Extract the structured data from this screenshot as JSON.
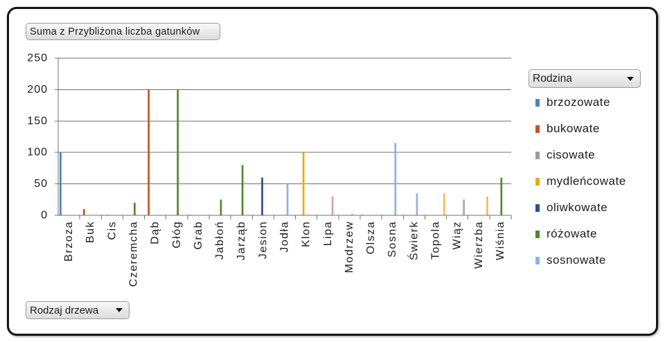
{
  "field_buttons": {
    "values": "Suma z Przybliżona liczba gatunków",
    "legend": "Rodzina",
    "axis": "Rodzaj drzewa"
  },
  "icons": {
    "dropdown": "chevron-down-icon"
  },
  "chart_data": {
    "type": "bar",
    "categories": [
      "Brzoza",
      "Buk",
      "Cis",
      "Czeremcha",
      "Dąb",
      "Głóg",
      "Grab",
      "Jabłoń",
      "Jarząb",
      "Jesion",
      "Jodła",
      "Klon",
      "Lipa",
      "Modrzew",
      "Olsza",
      "Sosna",
      "Świerk",
      "Topola",
      "Wiąz",
      "Wierzba",
      "Wiśnia"
    ],
    "ylim": [
      0,
      250
    ],
    "yticks": [
      0,
      50,
      100,
      150,
      200,
      250
    ],
    "grid": true,
    "legend_position": "right",
    "series": [
      {
        "name": "brzozowate",
        "color": "#4f81bd",
        "values": [
          100,
          null,
          null,
          null,
          null,
          null,
          1,
          null,
          null,
          null,
          null,
          null,
          null,
          null,
          1,
          null,
          null,
          null,
          null,
          null,
          null
        ]
      },
      {
        "name": "bukowate",
        "color": "#c8531f",
        "values": [
          null,
          10,
          null,
          null,
          200,
          null,
          null,
          null,
          null,
          null,
          null,
          null,
          null,
          null,
          null,
          null,
          null,
          null,
          null,
          null,
          null
        ]
      },
      {
        "name": "cisowate",
        "color": "#9c9c9c",
        "values": [
          null,
          null,
          1,
          null,
          null,
          null,
          null,
          null,
          null,
          null,
          null,
          null,
          null,
          null,
          null,
          null,
          null,
          null,
          null,
          null,
          null
        ]
      },
      {
        "name": "mydleńcowate",
        "color": "#f2a60c",
        "values": [
          null,
          null,
          null,
          null,
          null,
          null,
          null,
          null,
          null,
          null,
          null,
          100,
          null,
          null,
          null,
          null,
          null,
          null,
          null,
          null,
          null
        ]
      },
      {
        "name": "oliwkowate",
        "color": "#2a4d9b",
        "values": [
          null,
          null,
          null,
          null,
          null,
          null,
          null,
          null,
          null,
          60,
          null,
          null,
          null,
          null,
          null,
          null,
          null,
          null,
          null,
          null,
          null
        ]
      },
      {
        "name": "różowate",
        "color": "#4d8a2d",
        "values": [
          null,
          null,
          null,
          20,
          null,
          200,
          null,
          25,
          80,
          null,
          null,
          null,
          null,
          null,
          null,
          null,
          null,
          null,
          null,
          null,
          60
        ]
      },
      {
        "name": "sosnowate",
        "color": "#8fb2e0",
        "values": [
          null,
          null,
          null,
          null,
          null,
          null,
          null,
          null,
          null,
          null,
          50,
          null,
          null,
          2,
          null,
          115,
          35,
          null,
          null,
          null,
          null
        ]
      },
      {
        "color": "#d8a59a",
        "values": [
          null,
          null,
          null,
          null,
          null,
          null,
          null,
          null,
          null,
          null,
          null,
          null,
          30,
          null,
          null,
          null,
          null,
          null,
          null,
          null,
          null
        ]
      },
      {
        "color": "#aaa7bb",
        "values": [
          null,
          null,
          null,
          null,
          null,
          null,
          null,
          null,
          null,
          null,
          null,
          null,
          null,
          null,
          null,
          null,
          null,
          null,
          25,
          null,
          null
        ]
      },
      {
        "color": "#f4b95a",
        "values": [
          null,
          null,
          null,
          null,
          null,
          null,
          null,
          null,
          null,
          null,
          null,
          null,
          null,
          null,
          null,
          null,
          null,
          35,
          null,
          30,
          null
        ]
      }
    ]
  }
}
